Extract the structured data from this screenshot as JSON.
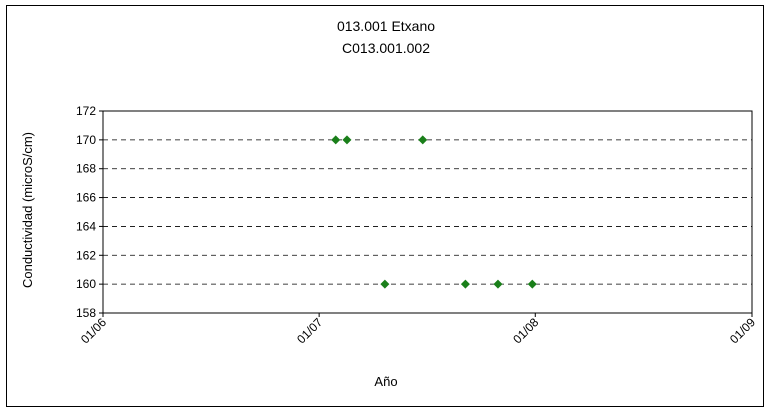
{
  "chart_data": {
    "type": "scatter",
    "title": "013.001 Etxano",
    "subtitle": "C013.001.002",
    "xlabel": "Año",
    "ylabel": "Conductividad (microS/cm)",
    "ylim": [
      158,
      172
    ],
    "yticks": [
      158,
      160,
      162,
      164,
      166,
      168,
      170,
      172
    ],
    "xlim": [
      "2006-01-01",
      "2009-01-01"
    ],
    "xticks": [
      {
        "date": "2006-01-01",
        "label": "01/06"
      },
      {
        "date": "2007-01-01",
        "label": "01/07"
      },
      {
        "date": "2008-01-01",
        "label": "01/08"
      },
      {
        "date": "2009-01-01",
        "label": "01/09"
      }
    ],
    "grid": "horizontal-dashed",
    "marker_color": "#1a7f1a",
    "series": [
      {
        "points": [
          {
            "x": "2007-01-29",
            "y": 170
          },
          {
            "x": "2007-02-17",
            "y": 170
          },
          {
            "x": "2007-06-25",
            "y": 170
          },
          {
            "x": "2007-04-22",
            "y": 160
          },
          {
            "x": "2007-09-05",
            "y": 160
          },
          {
            "x": "2007-10-30",
            "y": 160
          },
          {
            "x": "2007-12-27",
            "y": 160
          }
        ]
      }
    ]
  }
}
